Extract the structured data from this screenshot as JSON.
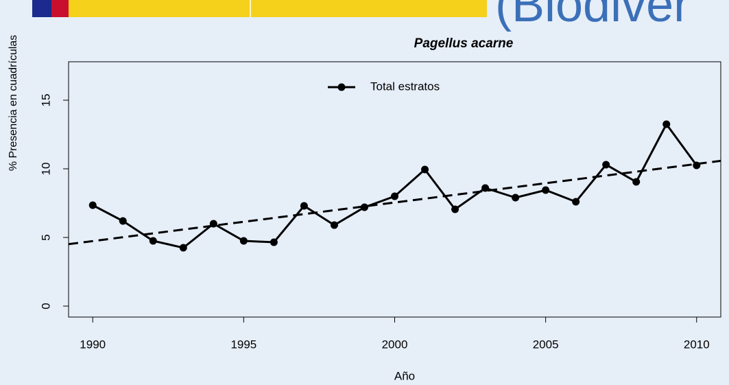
{
  "header": {
    "title": "(Biodiver"
  },
  "chart_data": {
    "type": "line",
    "title": "Pagellus acarne",
    "x_label": "Año",
    "y_label": "% Presencia en cuadrículas",
    "x": [
      1990,
      1991,
      1992,
      1993,
      1994,
      1995,
      1996,
      1997,
      1998,
      1999,
      2000,
      2001,
      2002,
      2003,
      2004,
      2005,
      2006,
      2007,
      2008,
      2009,
      2010
    ],
    "series": [
      {
        "name": "Total estratos",
        "color": "#000000",
        "values": [
          7.35,
          6.2,
          4.75,
          4.25,
          6.0,
          4.75,
          4.65,
          7.3,
          5.9,
          7.2,
          8.0,
          9.95,
          7.05,
          8.6,
          7.9,
          8.45,
          7.6,
          10.3,
          9.05,
          13.25,
          10.25
        ]
      }
    ],
    "trend": {
      "color": "#000000",
      "x": [
        1989.2,
        2010.8
      ],
      "values": [
        4.51,
        10.58
      ]
    },
    "xlim": [
      1989.2,
      2010.8
    ],
    "ylim": [
      -0.8,
      17.8
    ],
    "xticks": [
      1990,
      1995,
      2000,
      2005,
      2010
    ],
    "yticks": [
      0,
      5,
      10,
      15
    ],
    "grid": false,
    "legend": "top"
  }
}
